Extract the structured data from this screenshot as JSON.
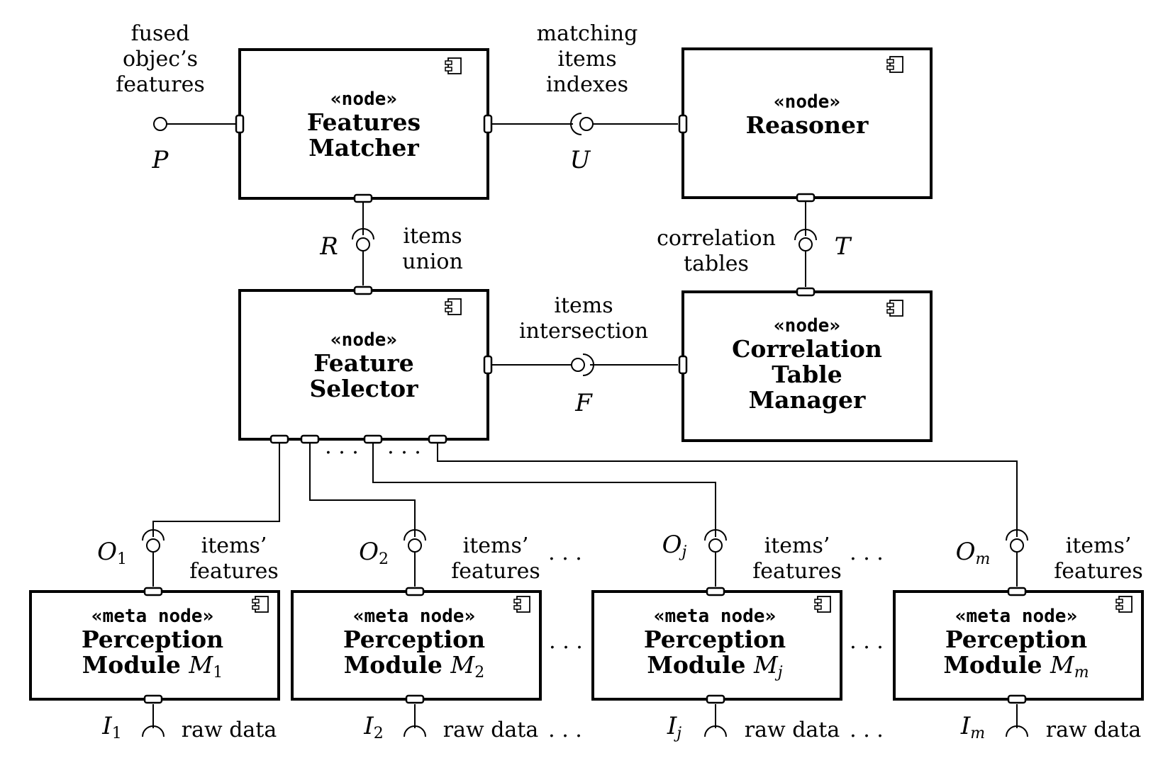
{
  "nodes": {
    "features_matcher": {
      "stereotype": "«node»",
      "name_line1": "Features",
      "name_line2": "Matcher"
    },
    "reasoner": {
      "stereotype": "«node»",
      "name_line1": "Reasoner"
    },
    "feature_selector": {
      "stereotype": "«node»",
      "name_line1": "Feature",
      "name_line2": "Selector"
    },
    "correlation_table_manager": {
      "stereotype": "«node»",
      "name_line1": "Correlation",
      "name_line2": "Table",
      "name_line3": "Manager"
    }
  },
  "modules": [
    {
      "stereotype": "«meta node»",
      "name_line1": "Perception",
      "name_line2": "Module",
      "symbol": "M",
      "sub": "1",
      "out_port": "O",
      "out_sub": "1",
      "out_label1": "items’",
      "out_label2": "features",
      "in_port": "I",
      "in_sub": "1",
      "in_label": "raw data"
    },
    {
      "stereotype": "«meta node»",
      "name_line1": "Perception",
      "name_line2": "Module",
      "symbol": "M",
      "sub": "2",
      "out_port": "O",
      "out_sub": "2",
      "out_label1": "items’",
      "out_label2": "features",
      "in_port": "I",
      "in_sub": "2",
      "in_label": "raw data"
    },
    {
      "stereotype": "«meta node»",
      "name_line1": "Perception",
      "name_line2": "Module",
      "symbol": "M",
      "sub": "j",
      "out_port": "O",
      "out_sub": "j",
      "out_label1": "items’",
      "out_label2": "features",
      "in_port": "I",
      "in_sub": "j",
      "in_label": "raw data"
    },
    {
      "stereotype": "«meta node»",
      "name_line1": "Perception",
      "name_line2": "Module",
      "symbol": "M",
      "sub": "m",
      "out_port": "O",
      "out_sub": "m",
      "out_label1": "items’",
      "out_label2": "features",
      "in_port": "I",
      "in_sub": "m",
      "in_label": "raw data"
    }
  ],
  "interfaces": {
    "P": {
      "symbol": "P",
      "label1": "fused",
      "label2": "objec’s",
      "label3": "features"
    },
    "U": {
      "symbol": "U",
      "label1": "matching",
      "label2": "items",
      "label3": "indexes"
    },
    "R": {
      "symbol": "R",
      "label1": "items",
      "label2": "union"
    },
    "T": {
      "symbol": "T",
      "label1": "correlation",
      "label2": "tables"
    },
    "F": {
      "symbol": "F",
      "label1": "items",
      "label2": "intersection"
    }
  },
  "ellipsis": "…",
  "ellipsis_spaced": ". . ."
}
